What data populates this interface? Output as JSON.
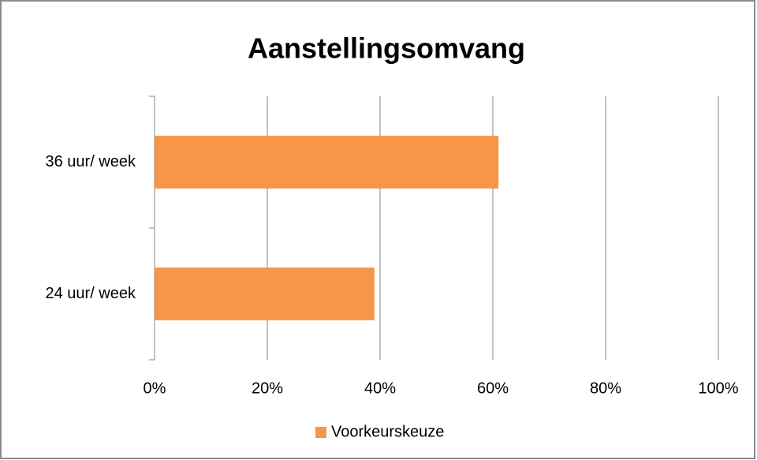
{
  "chart_data": {
    "type": "hbar",
    "title": "Aanstellingsomvang",
    "categories": [
      "36 uur/ week",
      "24 uur/ week"
    ],
    "series": [
      {
        "name": "Voorkeurskeuze",
        "color": "#f79646",
        "values": [
          61,
          39
        ]
      }
    ],
    "xlim": [
      0,
      100
    ],
    "xticks": [
      {
        "value": 0,
        "label": "0%"
      },
      {
        "value": 20,
        "label": "20%"
      },
      {
        "value": 40,
        "label": "40%"
      },
      {
        "value": 60,
        "label": "60%"
      },
      {
        "value": 80,
        "label": "80%"
      },
      {
        "value": 100,
        "label": "100%"
      }
    ],
    "grid": true,
    "legend": "bottom"
  }
}
